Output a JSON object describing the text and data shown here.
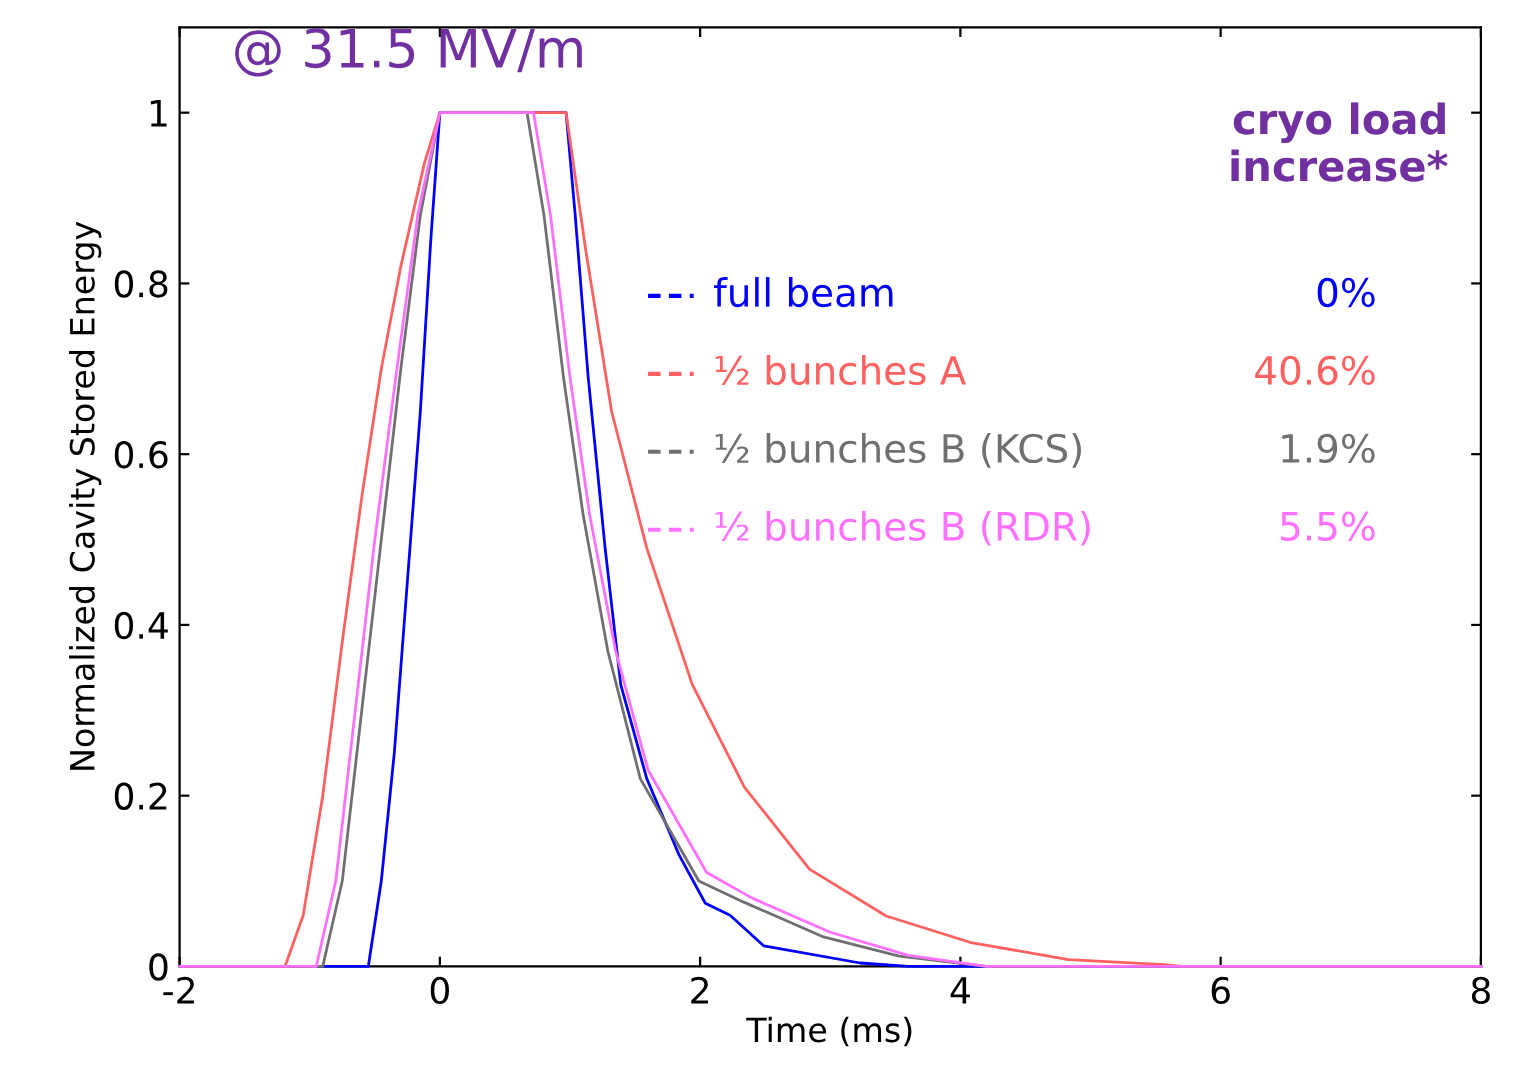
{
  "chart_data": {
    "type": "line",
    "title": "@ 31.5 MV/m",
    "xlabel": "Time (ms)",
    "ylabel": "Normalized Cavity Stored Energy",
    "legend_title": "cryo load increase*",
    "xlim": [
      -2,
      8
    ],
    "xticks": [
      -2,
      0,
      2,
      4,
      6,
      8
    ],
    "ylim": [
      0,
      1.1
    ],
    "yticks": [
      0,
      0.2,
      0.4,
      0.6,
      0.8,
      1
    ],
    "grid": false,
    "legend": "right",
    "annotations": [
      "0%",
      "40.6%",
      "1.9%",
      "5.5%"
    ],
    "series": [
      {
        "name": "full beam",
        "color": "#0000ff",
        "x": [
          -2,
          -0.55,
          -0.45,
          -0.35,
          -0.25,
          -0.15,
          -0.07,
          0,
          0.97,
          1.04,
          1.14,
          1.27,
          1.39,
          1.59,
          1.84,
          2.04,
          2.23,
          2.49,
          3.23,
          3.6,
          8
        ],
        "values": [
          0,
          0,
          0.1,
          0.25,
          0.45,
          0.65,
          0.85,
          1,
          1,
          0.88,
          0.69,
          0.49,
          0.33,
          0.22,
          0.13,
          0.074,
          0.06,
          0.024,
          0.004,
          0,
          0
        ]
      },
      {
        "name": "½ bunches A",
        "color": "#ff6060",
        "x": [
          -2,
          -1.19,
          -1.05,
          -0.9,
          -0.75,
          -0.6,
          -0.45,
          -0.3,
          -0.12,
          0,
          0.97,
          1.12,
          1.32,
          1.59,
          1.94,
          2.34,
          2.84,
          3.43,
          4.08,
          4.83,
          5.57,
          5.7,
          8
        ],
        "values": [
          0,
          0,
          0.06,
          0.2,
          0.38,
          0.55,
          0.7,
          0.82,
          0.94,
          1,
          1,
          0.84,
          0.65,
          0.49,
          0.33,
          0.21,
          0.114,
          0.059,
          0.028,
          0.008,
          0.002,
          0,
          0
        ]
      },
      {
        "name": "½ bunches B (KCS)",
        "color": "#707070",
        "x": [
          -2,
          -0.9,
          -0.75,
          -0.6,
          -0.45,
          -0.3,
          -0.15,
          0,
          0.67,
          0.8,
          0.95,
          1.1,
          1.29,
          1.54,
          1.99,
          2.34,
          2.94,
          3.53,
          4.2,
          8
        ],
        "values": [
          0,
          0,
          0.1,
          0.3,
          0.5,
          0.7,
          0.88,
          1,
          1,
          0.88,
          0.69,
          0.53,
          0.37,
          0.22,
          0.1,
          0.075,
          0.035,
          0.012,
          0,
          0
        ]
      },
      {
        "name": "½ bunches B (RDR)",
        "color": "#ff70ff",
        "x": [
          -2,
          -0.95,
          -0.8,
          -0.65,
          -0.5,
          -0.33,
          -0.17,
          0,
          0.72,
          0.85,
          1.0,
          1.15,
          1.35,
          1.6,
          2.05,
          2.4,
          3.0,
          3.6,
          4.2,
          8
        ],
        "values": [
          0,
          0,
          0.1,
          0.3,
          0.5,
          0.7,
          0.88,
          1,
          1,
          0.88,
          0.69,
          0.53,
          0.37,
          0.23,
          0.11,
          0.08,
          0.04,
          0.013,
          0,
          0
        ]
      }
    ]
  }
}
